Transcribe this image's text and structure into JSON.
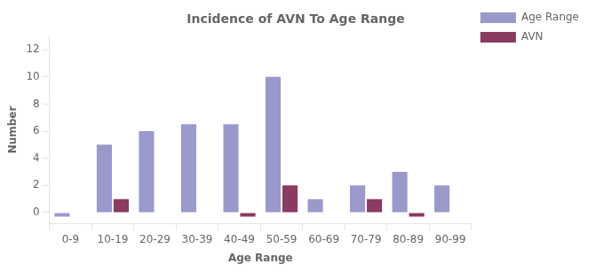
{
  "chart_data": {
    "type": "bar",
    "title": "Incidence of AVN To Age Range",
    "x_label": "Age Range",
    "y_label": "Number",
    "categories": [
      "0-9",
      "10-19",
      "20-29",
      "30-39",
      "40-49",
      "50-59",
      "60-69",
      "70-79",
      "80-89",
      "90-99"
    ],
    "series": [
      {
        "name": "Age Range",
        "color": "#9999cc",
        "values": [
          -0.3,
          5,
          6,
          6.5,
          6.5,
          10,
          1,
          2,
          3,
          2
        ]
      },
      {
        "name": "AVN",
        "color": "#8b3a62",
        "values": [
          null,
          1,
          null,
          null,
          -0.3,
          2,
          null,
          1,
          -0.3,
          null
        ]
      }
    ],
    "ylim": [
      -0.8,
      13
    ],
    "yticks": [
      0,
      2,
      4,
      6,
      8,
      10,
      12
    ],
    "grid": false,
    "legend": "upper right"
  }
}
